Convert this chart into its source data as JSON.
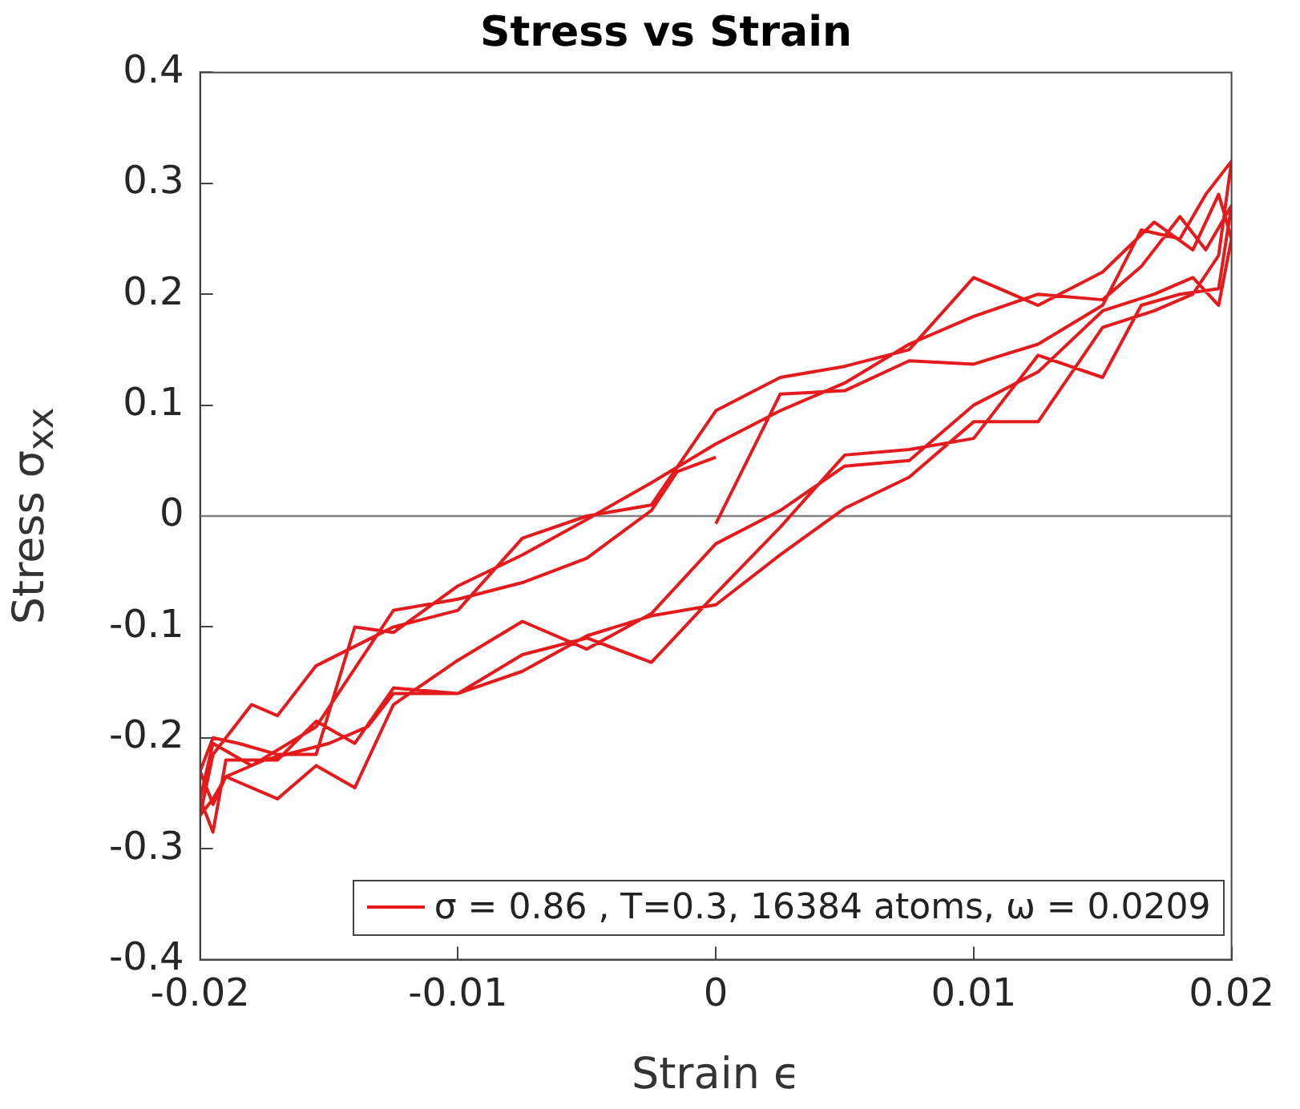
{
  "chart_data": {
    "type": "line",
    "title": "Stress vs Strain",
    "xlabel": "Strain ϵ",
    "ylabel": "Stress σ$_{xx}$",
    "xlim": [
      -0.02,
      0.02
    ],
    "xticks": [
      -0.02,
      -0.01,
      0,
      0.01,
      0.02
    ],
    "ylim": [
      -0.4,
      0.4
    ],
    "yticks": [
      -0.4,
      -0.3,
      -0.2,
      -0.1,
      0,
      0.1,
      0.2,
      0.3,
      0.4
    ],
    "legend": "bottom right",
    "ref_lines": [
      {
        "axis": "y",
        "value": 0,
        "color": "#808080"
      }
    ],
    "series": [
      {
        "name": "σ = 0.86 , T=0.3, 16384 atoms, ω = 0.0209",
        "color": "#e41a1c",
        "x": [
          0,
          0.0025,
          0.005,
          0.0075,
          0.01,
          0.0125,
          0.015,
          0.0165,
          0.018,
          0.019,
          0.02,
          0.0195,
          0.0185,
          0.017,
          0.015,
          0.0125,
          0.01,
          0.0075,
          0.005,
          0.0025,
          0,
          -0.0025,
          -0.005,
          -0.0075,
          -0.01,
          -0.0125,
          -0.0135,
          -0.015,
          -0.0175,
          -0.019,
          -0.0195,
          -0.02,
          -0.0195,
          -0.018,
          -0.017,
          -0.0155,
          -0.0125,
          -0.01,
          -0.0075,
          -0.005,
          -0.0025,
          0,
          0.0025,
          0.005,
          0.0075,
          0.01,
          0.0125,
          0.015,
          0.017,
          0.0185,
          0.0195,
          0.02,
          0.0195,
          0.0185,
          0.017,
          0.015,
          0.0125,
          0.01,
          0.0075,
          0.005,
          0.0025,
          0,
          -0.0025,
          -0.005,
          -0.0075,
          -0.01,
          -0.0125,
          -0.014,
          -0.0155,
          -0.017,
          -0.019,
          -0.0195,
          -0.02,
          -0.0195,
          -0.0185,
          -0.017,
          -0.0155,
          -0.014,
          -0.0125,
          -0.01,
          -0.0075,
          -0.005,
          -0.0025,
          0,
          0.0025,
          0.005,
          0.0075,
          0.01,
          0.0125,
          0.015,
          0.0165,
          0.018,
          0.019,
          0.02,
          0.0195,
          0.018,
          0.0165,
          0.015,
          0.0125,
          0.01,
          0.0075,
          0.005,
          0.0025,
          0,
          -0.0025,
          -0.005,
          -0.0075,
          -0.01,
          -0.0125,
          -0.014,
          -0.0155,
          -0.017,
          -0.019,
          -0.0195,
          -0.02,
          -0.0195,
          -0.018,
          -0.0155,
          -0.0125,
          -0.01,
          -0.0075,
          -0.005,
          -0.0025,
          -0.0015,
          0
        ],
        "values": [
          -0.007,
          0.11,
          0.113,
          0.14,
          0.137,
          0.155,
          0.19,
          0.258,
          0.25,
          0.29,
          0.32,
          0.235,
          0.2,
          0.185,
          0.17,
          0.085,
          0.085,
          0.035,
          0.007,
          -0.035,
          -0.08,
          -0.09,
          -0.108,
          -0.14,
          -0.16,
          -0.16,
          -0.19,
          -0.205,
          -0.22,
          -0.235,
          -0.255,
          -0.27,
          -0.215,
          -0.17,
          -0.18,
          -0.135,
          -0.1,
          -0.085,
          -0.02,
          0,
          0.01,
          0.095,
          0.125,
          0.135,
          0.15,
          0.215,
          0.19,
          0.22,
          0.265,
          0.24,
          0.29,
          0.25,
          0.19,
          0.215,
          0.2,
          0.185,
          0.13,
          0.1,
          0.05,
          0.045,
          0.005,
          -0.025,
          -0.088,
          -0.12,
          -0.095,
          -0.13,
          -0.17,
          -0.245,
          -0.225,
          -0.255,
          -0.235,
          -0.26,
          -0.23,
          -0.2,
          -0.205,
          -0.215,
          -0.215,
          -0.1,
          -0.105,
          -0.063,
          -0.035,
          -0.003,
          0.03,
          0.065,
          0.095,
          0.12,
          0.155,
          0.18,
          0.2,
          0.195,
          0.225,
          0.27,
          0.24,
          0.28,
          0.205,
          0.2,
          0.19,
          0.125,
          0.145,
          0.07,
          0.06,
          0.055,
          -0.01,
          -0.07,
          -0.132,
          -0.11,
          -0.125,
          -0.16,
          -0.155,
          -0.205,
          -0.185,
          -0.22,
          -0.22,
          -0.285,
          -0.255,
          -0.205,
          -0.225,
          -0.19,
          -0.085,
          -0.075,
          -0.06,
          -0.038,
          0.005,
          0.04,
          0.053
        ]
      }
    ]
  }
}
